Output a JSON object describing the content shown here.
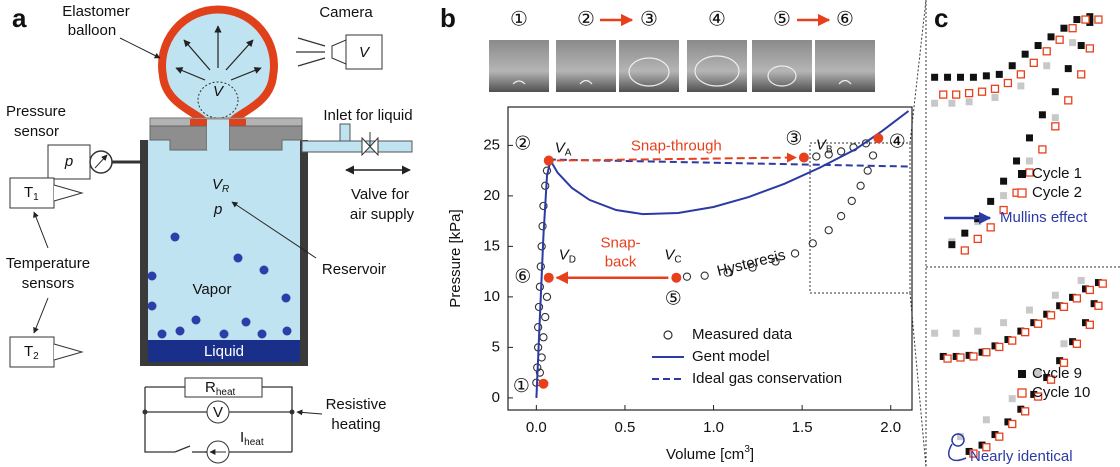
{
  "panel_labels": [
    "a",
    "b",
    "c"
  ],
  "panel_a": {
    "balloon_label": [
      "Elastomer",
      "balloon"
    ],
    "camera_label": "Camera",
    "camera_symbol": "V",
    "balloon_symbol": "V",
    "pressure_sensor_label": [
      "Pressure",
      "sensor"
    ],
    "pressure_symbol": "p",
    "inlet_label": "Inlet for liquid",
    "valve_label": [
      "Valve for",
      "air supply"
    ],
    "reservoir_volume": {
      "symbol": "V",
      "sub": "R"
    },
    "reservoir_pressure": "p",
    "reservoir_label": "Reservoir",
    "t1": {
      "symbol": "T",
      "sub": "1"
    },
    "t2": {
      "symbol": "T",
      "sub": "2"
    },
    "temperature_label": [
      "Temperature",
      "sensors"
    ],
    "vapor_label": "Vapor",
    "liquid_label": "Liquid",
    "r_heat": {
      "symbol": "R",
      "sub": "heat"
    },
    "voltmeter": "V",
    "i_heat": {
      "symbol": "I",
      "sub": "heat"
    },
    "heating_label": [
      "Resistive",
      "heating"
    ]
  },
  "photo_strip": {
    "labels": [
      "①",
      "②",
      "③",
      "④",
      "⑤",
      "⑥"
    ]
  },
  "chart_data": [
    {
      "type": "line",
      "x_label": {
        "text": "Volume [cm",
        "sup": "3",
        "end": "]"
      },
      "y_label": "Pressure [kPa]",
      "xlim": [
        -0.16,
        2.12
      ],
      "ylim": [
        -1.2,
        28.8
      ],
      "xticks": [
        {
          "value": 0,
          "label": "0.0"
        },
        {
          "value": 0.5,
          "label": "0.5"
        },
        {
          "value": 1,
          "label": "1.0"
        },
        {
          "value": 1.5,
          "label": "1.5"
        },
        {
          "value": 2,
          "label": "2.0"
        }
      ],
      "yticks": [
        0,
        5,
        10,
        15,
        20,
        25
      ],
      "series": [
        {
          "name": "Measured data",
          "color": "#333333",
          "marker": "open-circle",
          "x": [
            0.0,
            0.005,
            0.01,
            0.01,
            0.015,
            0.02,
            0.025,
            0.03,
            0.035,
            0.04,
            0.05,
            0.06,
            0.07,
            1.51,
            1.58,
            1.65,
            1.72,
            1.79,
            1.86,
            1.93,
            1.9,
            1.87,
            1.83,
            1.78,
            1.72,
            1.65,
            1.56,
            1.46,
            1.35,
            1.22,
            1.08,
            0.95,
            0.85,
            0.79,
            0.06,
            0.05,
            0.04,
            0.03,
            0.02
          ],
          "values": [
            1.5,
            3,
            5,
            7,
            9,
            11,
            13,
            15,
            17,
            19,
            21,
            22.5,
            23.4,
            23.8,
            23.9,
            24.1,
            24.4,
            24.8,
            25.2,
            25.7,
            24,
            22.5,
            21,
            19.5,
            18,
            16.6,
            15.3,
            14.3,
            13.5,
            12.9,
            12.4,
            12.1,
            12.0,
            11.9,
            10,
            8,
            6,
            4,
            2.5
          ]
        },
        {
          "name": "Gent model",
          "color": "#2b3aa5",
          "line": "solid",
          "x": [
            0,
            0.02,
            0.04,
            0.06,
            0.08,
            0.12,
            0.2,
            0.3,
            0.45,
            0.6,
            0.8,
            1.0,
            1.2,
            1.4,
            1.6,
            1.8,
            1.95,
            2.1
          ],
          "values": [
            0,
            8,
            16,
            22,
            23.5,
            22.3,
            20.8,
            19.6,
            18.6,
            18.2,
            18.3,
            18.9,
            19.9,
            21.2,
            22.8,
            24.6,
            26.4,
            28.4
          ]
        },
        {
          "name": "Ideal gas conservation",
          "color": "#2b3aa5",
          "line": "dashed",
          "x": [
            0.07,
            2.12
          ],
          "values": [
            23.6,
            22.9
          ]
        }
      ],
      "points": {
        "color": "#e8401c",
        "x": [
          0.04,
          0.07,
          1.51,
          1.93,
          0.79,
          0.07
        ],
        "values": [
          1.4,
          23.5,
          23.8,
          25.7,
          11.9,
          11.9
        ],
        "labels": [
          "①",
          "②",
          "③",
          "④",
          "⑤",
          "⑥"
        ]
      },
      "annotations": {
        "v_a": {
          "symbol": "V",
          "sub": "A"
        },
        "v_b": {
          "symbol": "V",
          "sub": "B"
        },
        "v_c": {
          "symbol": "V",
          "sub": "C"
        },
        "v_d": {
          "symbol": "V",
          "sub": "D"
        },
        "snap_through": "Snap-through",
        "snap_back": [
          "Snap-",
          "back"
        ],
        "hysteresis": "Hysteresis"
      }
    },
    {
      "type": "scatter",
      "xlim": [
        1.4,
        1.85
      ],
      "ylim": [
        17.5,
        26.3
      ],
      "annotation": "Mullins effect",
      "series": [
        {
          "color": "#c8c8c8",
          "marker": "filled-square",
          "x": [
            1.42,
            1.46,
            1.5,
            1.56,
            1.62,
            1.68,
            1.74,
            1.7,
            1.64,
            1.58,
            1.52,
            1.46
          ],
          "values": [
            23.0,
            23.0,
            23.05,
            23.2,
            23.6,
            24.3,
            25.1,
            22.5,
            21.0,
            19.8,
            18.9,
            18.2
          ]
        },
        {
          "name": "Cycle 1",
          "color": "#111111",
          "marker": "filled-square",
          "x": [
            1.42,
            1.45,
            1.48,
            1.51,
            1.54,
            1.57,
            1.6,
            1.63,
            1.66,
            1.69,
            1.72,
            1.75,
            1.78,
            1.78,
            1.76,
            1.73,
            1.7,
            1.67,
            1.64,
            1.61,
            1.58,
            1.55,
            1.52,
            1.49,
            1.46
          ],
          "values": [
            23.9,
            23.9,
            23.9,
            23.9,
            23.95,
            24.0,
            24.3,
            24.7,
            25.0,
            25.3,
            25.6,
            25.9,
            26.0,
            25.8,
            25.0,
            24.2,
            23.4,
            22.6,
            21.8,
            21.0,
            20.3,
            19.6,
            19.0,
            18.5,
            18.1
          ]
        },
        {
          "name": "Cycle 2",
          "color": "#e8401c",
          "marker": "open-square",
          "x": [
            1.44,
            1.47,
            1.5,
            1.53,
            1.56,
            1.59,
            1.62,
            1.65,
            1.68,
            1.71,
            1.74,
            1.77,
            1.8,
            1.78,
            1.76,
            1.73,
            1.7,
            1.67,
            1.64,
            1.61,
            1.58,
            1.55,
            1.52,
            1.49
          ],
          "values": [
            23.3,
            23.3,
            23.35,
            23.4,
            23.5,
            23.7,
            24.0,
            24.4,
            24.8,
            25.2,
            25.6,
            25.9,
            25.9,
            24.9,
            24.0,
            23.1,
            22.2,
            21.4,
            20.6,
            19.9,
            19.3,
            18.7,
            18.3,
            17.9
          ]
        }
      ]
    },
    {
      "type": "scatter",
      "xlim": [
        1.4,
        1.85
      ],
      "ylim": [
        17.3,
        26.3
      ],
      "annotation": "Nearly identical",
      "series": [
        {
          "color": "#c8c8c8",
          "marker": "filled-square",
          "x": [
            1.42,
            1.47,
            1.52,
            1.58,
            1.64,
            1.7,
            1.76,
            1.72,
            1.66,
            1.6,
            1.54,
            1.48
          ],
          "values": [
            23.4,
            23.4,
            23.5,
            23.9,
            24.5,
            25.2,
            25.9,
            22.9,
            21.5,
            20.3,
            19.3,
            18.5
          ]
        },
        {
          "name": "Cycle 9",
          "color": "#111111",
          "marker": "filled-square",
          "x": [
            1.44,
            1.47,
            1.5,
            1.53,
            1.56,
            1.59,
            1.62,
            1.65,
            1.68,
            1.71,
            1.74,
            1.77,
            1.8,
            1.79,
            1.77,
            1.74,
            1.71,
            1.68,
            1.65,
            1.62,
            1.59,
            1.56,
            1.53,
            1.5
          ],
          "values": [
            22.3,
            22.3,
            22.35,
            22.5,
            22.8,
            23.1,
            23.5,
            23.9,
            24.3,
            24.7,
            25.1,
            25.5,
            25.8,
            24.8,
            23.9,
            23.0,
            22.1,
            21.3,
            20.5,
            19.8,
            19.2,
            18.6,
            18.1,
            17.8
          ]
        },
        {
          "name": "Cycle 10",
          "color": "#e8401c",
          "marker": "open-square",
          "x": [
            1.45,
            1.48,
            1.51,
            1.54,
            1.57,
            1.6,
            1.63,
            1.66,
            1.69,
            1.72,
            1.75,
            1.78,
            1.81,
            1.8,
            1.78,
            1.75,
            1.72,
            1.69,
            1.66,
            1.63,
            1.6,
            1.57,
            1.54,
            1.51
          ],
          "values": [
            22.2,
            22.25,
            22.3,
            22.5,
            22.75,
            23.05,
            23.45,
            23.85,
            24.25,
            24.65,
            25.05,
            25.45,
            25.75,
            24.7,
            23.8,
            22.9,
            22.0,
            21.2,
            20.4,
            19.7,
            19.1,
            18.5,
            18.0,
            17.7
          ]
        }
      ]
    }
  ]
}
